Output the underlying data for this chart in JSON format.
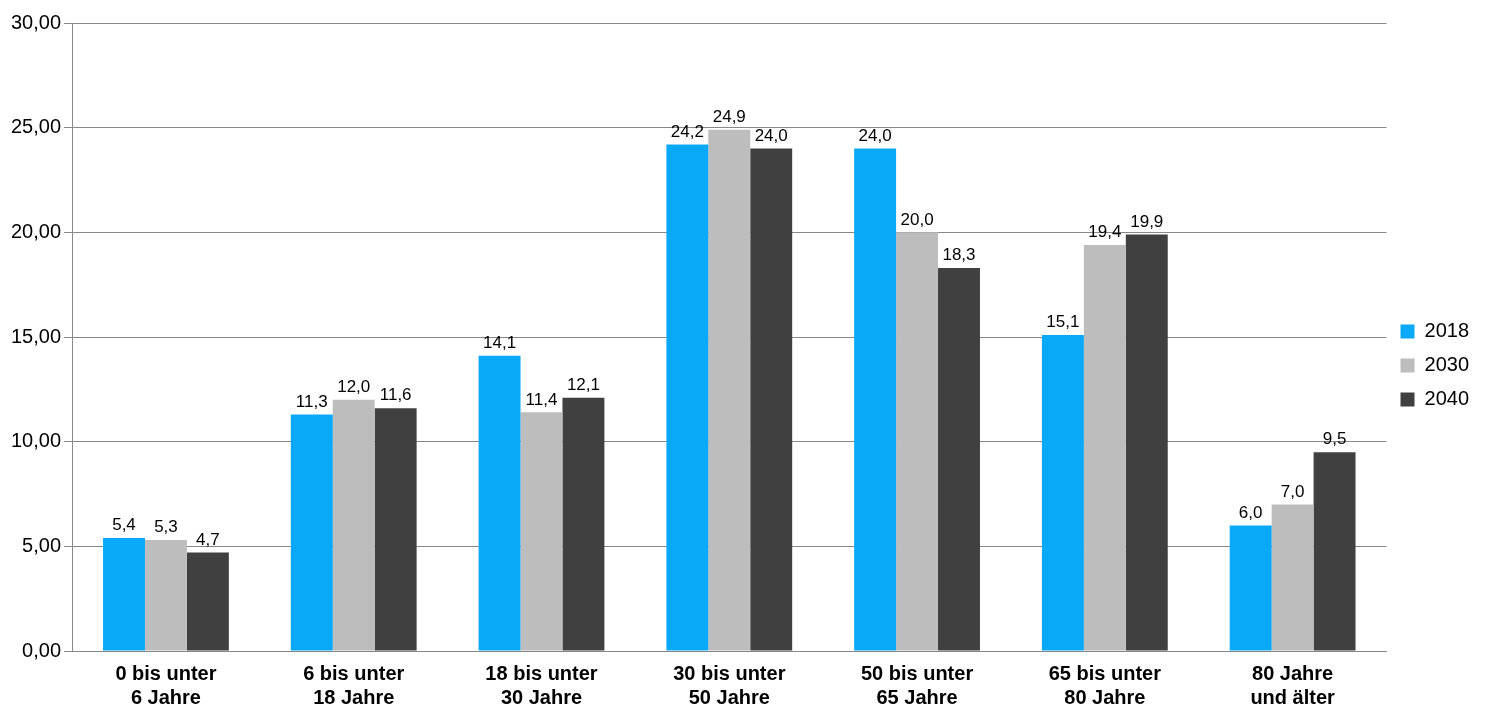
{
  "chart_data": {
    "type": "bar",
    "categories": [
      "0 bis unter 6 Jahre",
      "6 bis unter 18 Jahre",
      "18 bis unter 30 Jahre",
      "30 bis unter 50 Jahre",
      "50 bis unter 65 Jahre",
      "65 bis unter 80 Jahre",
      "80 Jahre und älter"
    ],
    "series": [
      {
        "name": "2018",
        "color": "#0aa9f8",
        "values": [
          5.4,
          11.3,
          14.1,
          24.2,
          24.0,
          15.1,
          6.0
        ],
        "value_labels": [
          "5,4",
          "11,3",
          "14,1",
          "24,2",
          "24,0",
          "15,1",
          "6,0"
        ]
      },
      {
        "name": "2030",
        "color": "#bdbdbd",
        "values": [
          5.3,
          12.0,
          11.4,
          24.9,
          20.0,
          19.4,
          7.0
        ],
        "value_labels": [
          "5,3",
          "12,0",
          "11,4",
          "24,9",
          "20,0",
          "19,4",
          "7,0"
        ]
      },
      {
        "name": "2040",
        "color": "#404040",
        "values": [
          4.7,
          11.6,
          12.1,
          24.0,
          18.3,
          19.9,
          9.5
        ],
        "value_labels": [
          "4,7",
          "11,6",
          "12,1",
          "24,0",
          "18,3",
          "19,9",
          "9,5"
        ]
      }
    ],
    "ylim": [
      0,
      30
    ],
    "yticks": [
      {
        "value": 0,
        "label": "0,00"
      },
      {
        "value": 5,
        "label": "5,00"
      },
      {
        "value": 10,
        "label": "10,00"
      },
      {
        "value": 15,
        "label": "15,00"
      },
      {
        "value": 20,
        "label": "20,00"
      },
      {
        "value": 25,
        "label": "25,00"
      },
      {
        "value": 30,
        "label": "30,00"
      }
    ],
    "grid": "y",
    "legend": "right"
  }
}
